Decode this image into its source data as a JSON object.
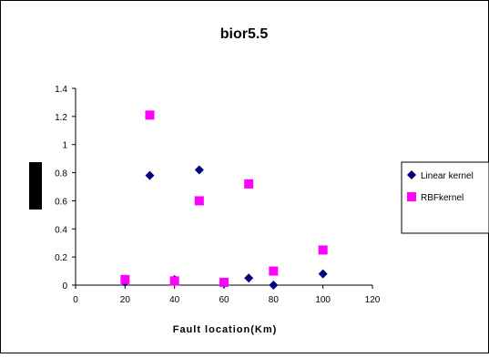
{
  "chart_data": {
    "type": "scatter",
    "title": "bior5.5",
    "xlabel": "Fault location(Km)",
    "ylabel": "",
    "xlim": [
      0,
      120
    ],
    "ylim": [
      0,
      1.4
    ],
    "x_ticks": [
      0,
      20,
      40,
      60,
      80,
      100,
      120
    ],
    "y_ticks": [
      0,
      0.2,
      0.4,
      0.6,
      0.8,
      1,
      1.2,
      1.4
    ],
    "x_tick_labels": [
      "0",
      "20",
      "40",
      "60",
      "80",
      "100",
      "120"
    ],
    "y_tick_labels": [
      "0",
      "0.2",
      "0.4",
      "0.6",
      "0.8",
      "1",
      "1.2",
      "1.4"
    ],
    "grid": false,
    "legend_position": "right",
    "series": [
      {
        "name": "Linear kernel",
        "marker": "diamond",
        "color": "#000080",
        "points": [
          {
            "x": 20,
            "y": 0.02
          },
          {
            "x": 30,
            "y": 0.78
          },
          {
            "x": 40,
            "y": 0.04
          },
          {
            "x": 50,
            "y": 0.82
          },
          {
            "x": 60,
            "y": 0.01
          },
          {
            "x": 70,
            "y": 0.05
          },
          {
            "x": 80,
            "y": 0.0
          },
          {
            "x": 100,
            "y": 0.08
          }
        ]
      },
      {
        "name": "RBFkernel",
        "marker": "square",
        "color": "#FF00FF",
        "points": [
          {
            "x": 20,
            "y": 0.04
          },
          {
            "x": 30,
            "y": 1.21
          },
          {
            "x": 40,
            "y": 0.03
          },
          {
            "x": 50,
            "y": 0.6
          },
          {
            "x": 60,
            "y": 0.02
          },
          {
            "x": 70,
            "y": 0.72
          },
          {
            "x": 80,
            "y": 0.1
          },
          {
            "x": 100,
            "y": 0.25
          }
        ]
      }
    ]
  }
}
